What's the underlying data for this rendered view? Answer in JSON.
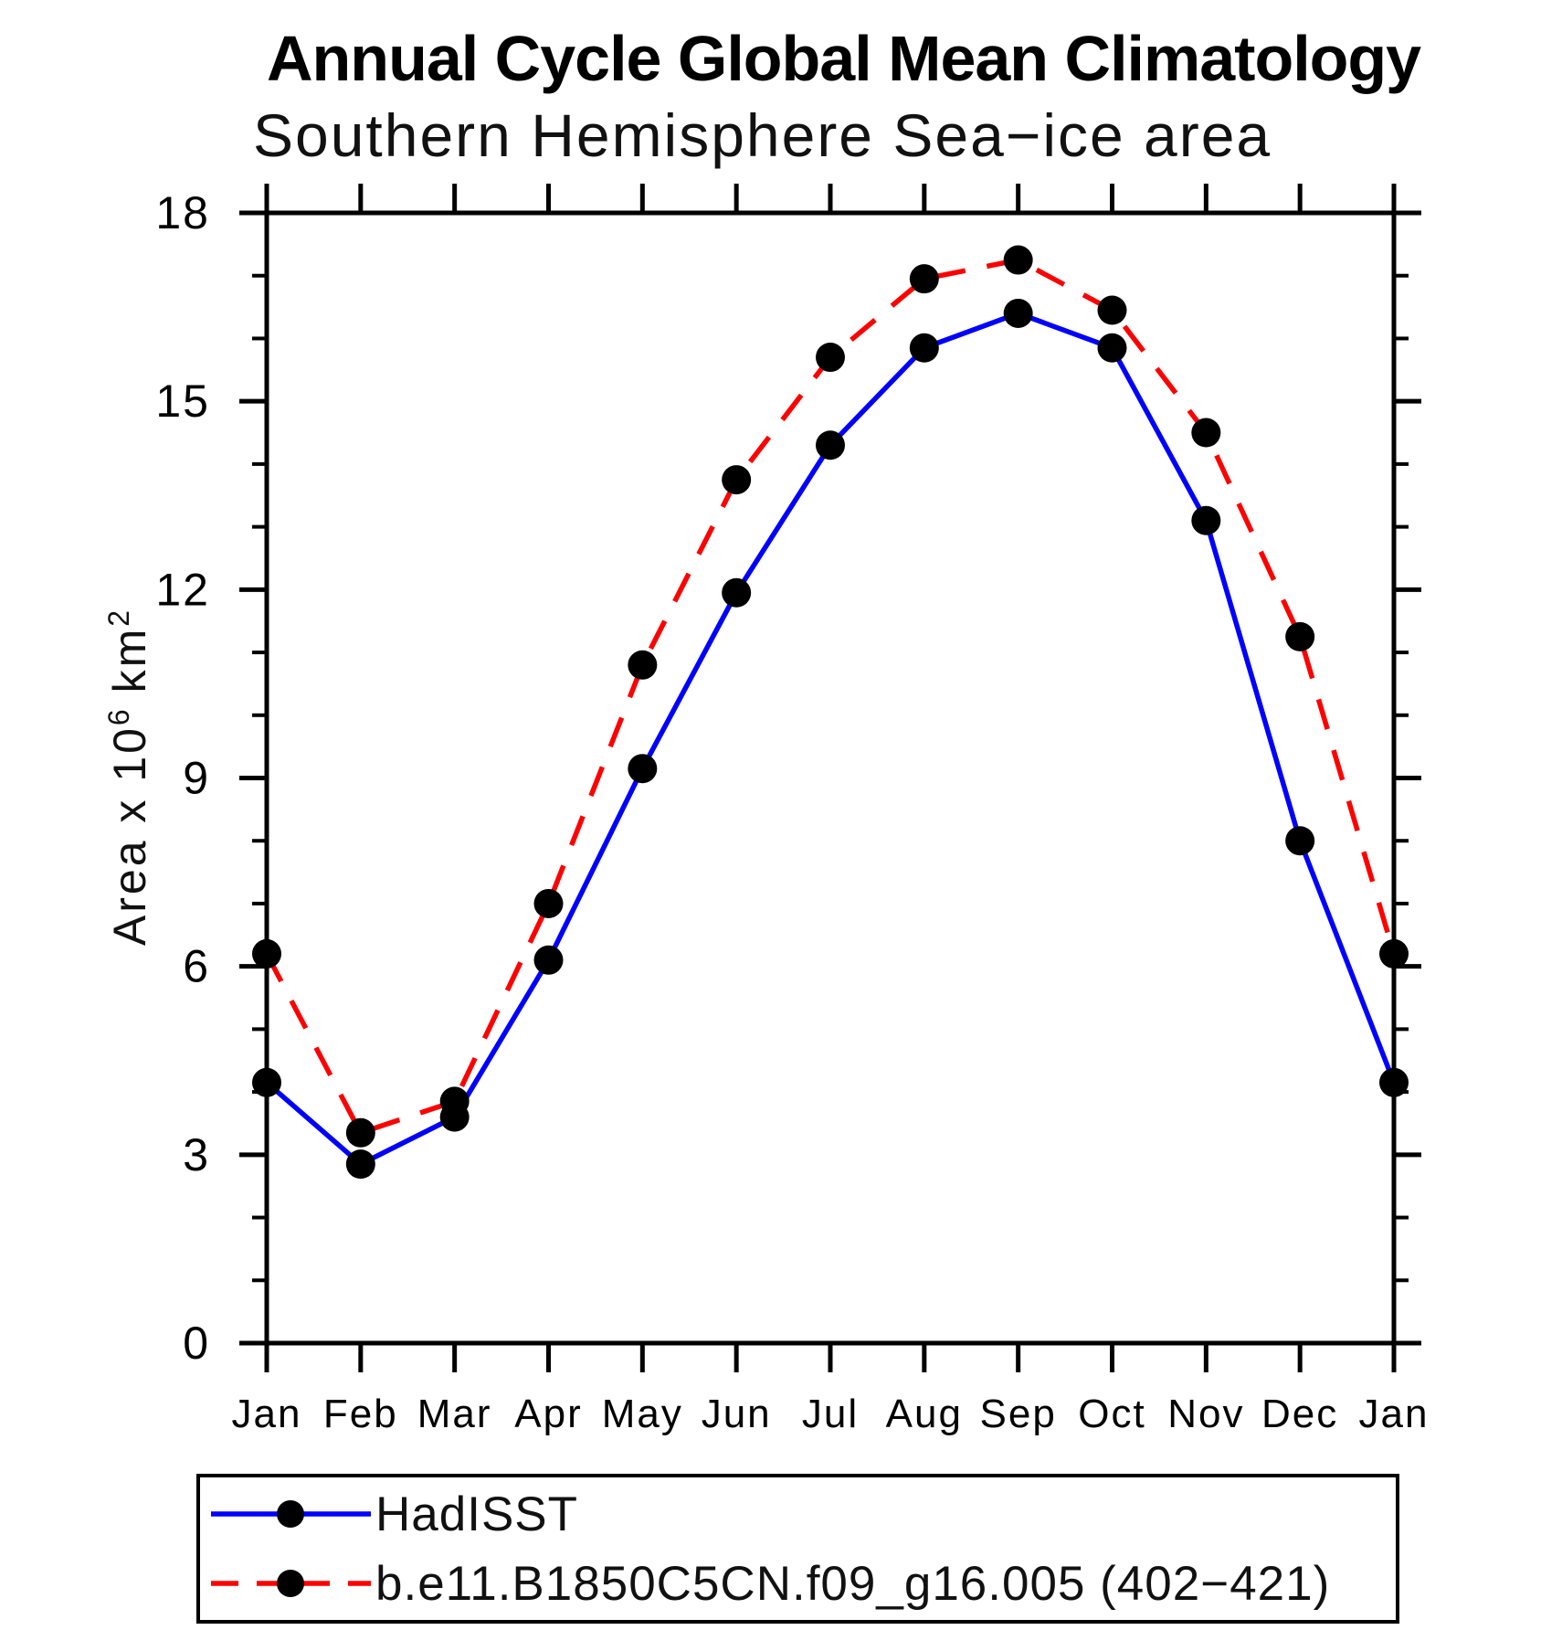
{
  "page": {
    "background": "#ffffff"
  },
  "colors": {
    "axis": "#000000",
    "marker": "#000000",
    "hadisst_line": "#0000ff",
    "model_line": "#ff0000"
  },
  "y_axis_title_parts": {
    "prefix": "Area x 10",
    "sup1": "6",
    "mid": " km",
    "sup2": "2"
  },
  "chart_data": {
    "type": "line",
    "title": "Annual Cycle Global Mean Climatology",
    "subtitle": "Southern Hemisphere Sea−ice area",
    "ylabel": "Area x 10^6 km^2",
    "xlabel": "",
    "categories": [
      "Jan",
      "Feb",
      "Mar",
      "Apr",
      "May",
      "Jun",
      "Jul",
      "Aug",
      "Sep",
      "Oct",
      "Nov",
      "Dec",
      "Jan"
    ],
    "yticks": [
      0,
      3,
      6,
      9,
      12,
      15,
      18
    ],
    "minor_tick_step": 1,
    "ylim": [
      0,
      18
    ],
    "grid": false,
    "legend_position": "bottom",
    "series": [
      {
        "name": "HadISST",
        "color": "#0000ff",
        "style": "solid",
        "marker": "circle",
        "marker_color": "#000000",
        "values": [
          4.15,
          2.85,
          3.6,
          6.1,
          9.15,
          11.95,
          14.3,
          15.85,
          16.4,
          15.85,
          13.1,
          8.0,
          4.15
        ]
      },
      {
        "name": "b.e11.B1850C5CN.f09_g16.005 (402−421)",
        "color": "#ff0000",
        "style": "dashed",
        "marker": "circle",
        "marker_color": "#000000",
        "values": [
          6.2,
          3.35,
          3.85,
          7.0,
          10.8,
          13.75,
          15.7,
          16.95,
          17.25,
          16.45,
          14.5,
          11.25,
          6.2
        ]
      }
    ]
  }
}
